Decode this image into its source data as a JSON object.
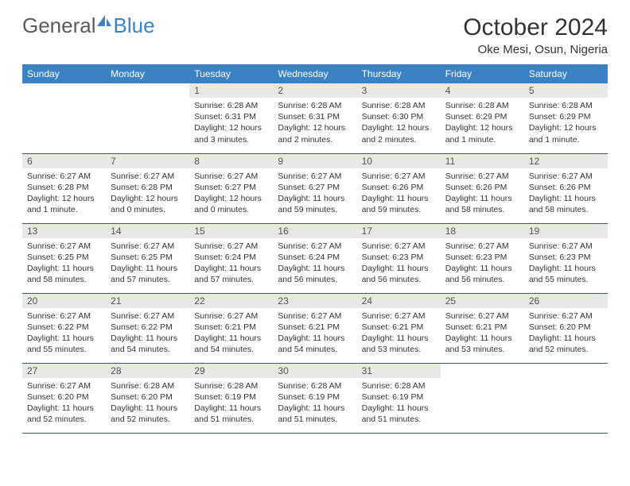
{
  "brand": {
    "part1": "General",
    "part2": "Blue"
  },
  "title": "October 2024",
  "location": "Oke Mesi, Osun, Nigeria",
  "colors": {
    "header_bg": "#3b82c4",
    "header_text": "#ffffff",
    "daynum_bg": "#e8e8e8",
    "daynum_text": "#555555",
    "body_text": "#333333",
    "row_divider": "#3b5a7a",
    "logo_gray": "#5a5a5a",
    "logo_blue": "#3b82c4"
  },
  "weekdays": [
    "Sunday",
    "Monday",
    "Tuesday",
    "Wednesday",
    "Thursday",
    "Friday",
    "Saturday"
  ],
  "weeks": [
    [
      null,
      null,
      {
        "n": "1",
        "sr": "6:28 AM",
        "ss": "6:31 PM",
        "dl": "12 hours and 3 minutes."
      },
      {
        "n": "2",
        "sr": "6:28 AM",
        "ss": "6:31 PM",
        "dl": "12 hours and 2 minutes."
      },
      {
        "n": "3",
        "sr": "6:28 AM",
        "ss": "6:30 PM",
        "dl": "12 hours and 2 minutes."
      },
      {
        "n": "4",
        "sr": "6:28 AM",
        "ss": "6:29 PM",
        "dl": "12 hours and 1 minute."
      },
      {
        "n": "5",
        "sr": "6:28 AM",
        "ss": "6:29 PM",
        "dl": "12 hours and 1 minute."
      }
    ],
    [
      {
        "n": "6",
        "sr": "6:27 AM",
        "ss": "6:28 PM",
        "dl": "12 hours and 1 minute."
      },
      {
        "n": "7",
        "sr": "6:27 AM",
        "ss": "6:28 PM",
        "dl": "12 hours and 0 minutes."
      },
      {
        "n": "8",
        "sr": "6:27 AM",
        "ss": "6:27 PM",
        "dl": "12 hours and 0 minutes."
      },
      {
        "n": "9",
        "sr": "6:27 AM",
        "ss": "6:27 PM",
        "dl": "11 hours and 59 minutes."
      },
      {
        "n": "10",
        "sr": "6:27 AM",
        "ss": "6:26 PM",
        "dl": "11 hours and 59 minutes."
      },
      {
        "n": "11",
        "sr": "6:27 AM",
        "ss": "6:26 PM",
        "dl": "11 hours and 58 minutes."
      },
      {
        "n": "12",
        "sr": "6:27 AM",
        "ss": "6:26 PM",
        "dl": "11 hours and 58 minutes."
      }
    ],
    [
      {
        "n": "13",
        "sr": "6:27 AM",
        "ss": "6:25 PM",
        "dl": "11 hours and 58 minutes."
      },
      {
        "n": "14",
        "sr": "6:27 AM",
        "ss": "6:25 PM",
        "dl": "11 hours and 57 minutes."
      },
      {
        "n": "15",
        "sr": "6:27 AM",
        "ss": "6:24 PM",
        "dl": "11 hours and 57 minutes."
      },
      {
        "n": "16",
        "sr": "6:27 AM",
        "ss": "6:24 PM",
        "dl": "11 hours and 56 minutes."
      },
      {
        "n": "17",
        "sr": "6:27 AM",
        "ss": "6:23 PM",
        "dl": "11 hours and 56 minutes."
      },
      {
        "n": "18",
        "sr": "6:27 AM",
        "ss": "6:23 PM",
        "dl": "11 hours and 56 minutes."
      },
      {
        "n": "19",
        "sr": "6:27 AM",
        "ss": "6:23 PM",
        "dl": "11 hours and 55 minutes."
      }
    ],
    [
      {
        "n": "20",
        "sr": "6:27 AM",
        "ss": "6:22 PM",
        "dl": "11 hours and 55 minutes."
      },
      {
        "n": "21",
        "sr": "6:27 AM",
        "ss": "6:22 PM",
        "dl": "11 hours and 54 minutes."
      },
      {
        "n": "22",
        "sr": "6:27 AM",
        "ss": "6:21 PM",
        "dl": "11 hours and 54 minutes."
      },
      {
        "n": "23",
        "sr": "6:27 AM",
        "ss": "6:21 PM",
        "dl": "11 hours and 54 minutes."
      },
      {
        "n": "24",
        "sr": "6:27 AM",
        "ss": "6:21 PM",
        "dl": "11 hours and 53 minutes."
      },
      {
        "n": "25",
        "sr": "6:27 AM",
        "ss": "6:21 PM",
        "dl": "11 hours and 53 minutes."
      },
      {
        "n": "26",
        "sr": "6:27 AM",
        "ss": "6:20 PM",
        "dl": "11 hours and 52 minutes."
      }
    ],
    [
      {
        "n": "27",
        "sr": "6:27 AM",
        "ss": "6:20 PM",
        "dl": "11 hours and 52 minutes."
      },
      {
        "n": "28",
        "sr": "6:28 AM",
        "ss": "6:20 PM",
        "dl": "11 hours and 52 minutes."
      },
      {
        "n": "29",
        "sr": "6:28 AM",
        "ss": "6:19 PM",
        "dl": "11 hours and 51 minutes."
      },
      {
        "n": "30",
        "sr": "6:28 AM",
        "ss": "6:19 PM",
        "dl": "11 hours and 51 minutes."
      },
      {
        "n": "31",
        "sr": "6:28 AM",
        "ss": "6:19 PM",
        "dl": "11 hours and 51 minutes."
      },
      null,
      null
    ]
  ],
  "labels": {
    "sunrise": "Sunrise:",
    "sunset": "Sunset:",
    "daylight": "Daylight:"
  }
}
